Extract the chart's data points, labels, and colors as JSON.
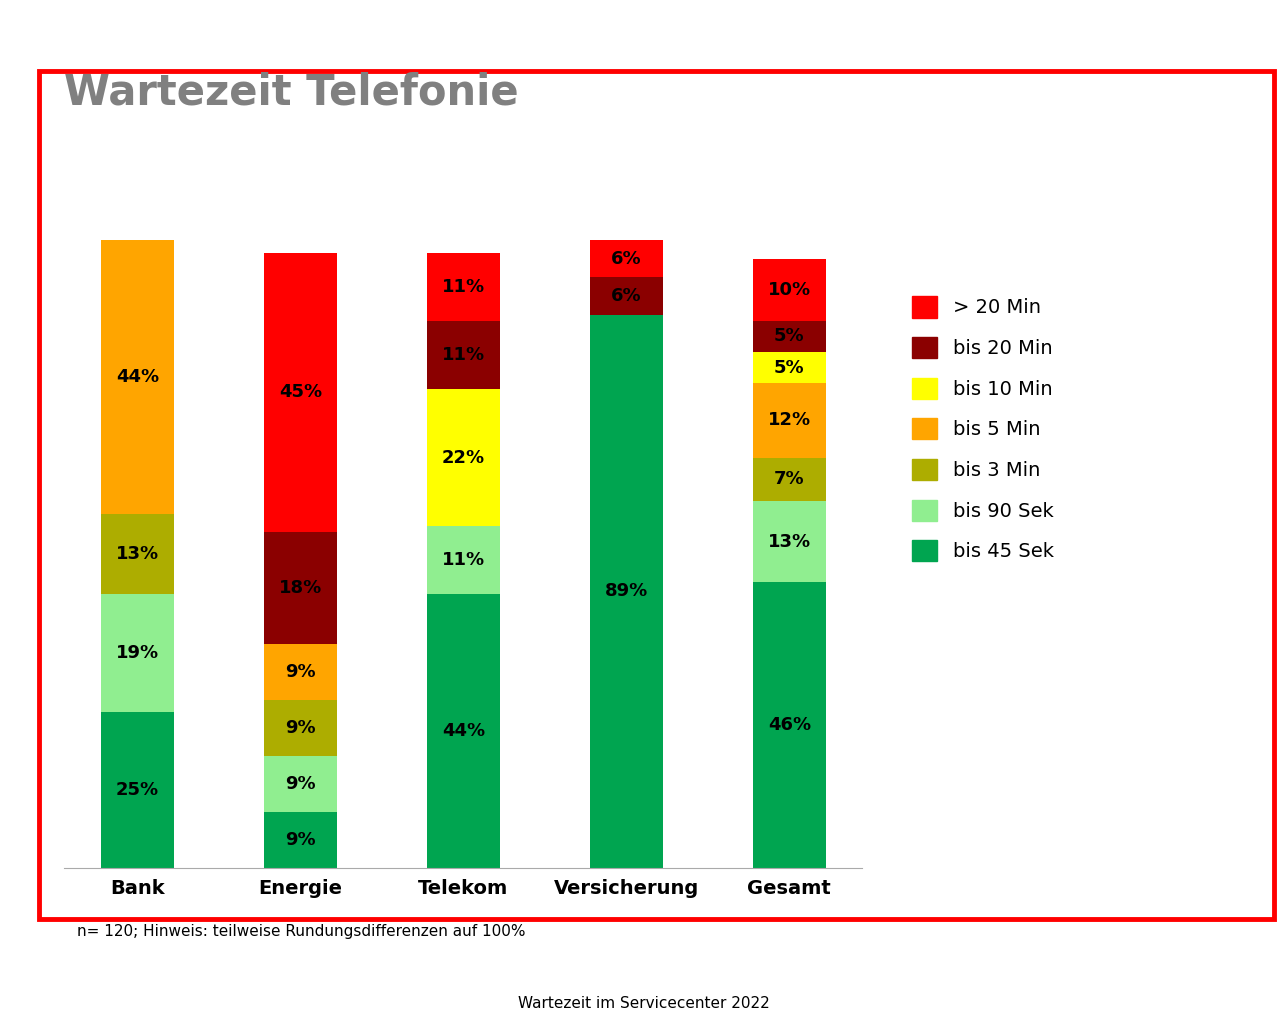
{
  "title": "Wartezeit Telefonie",
  "subtitle": "Wartezeit im Servicecenter 2022",
  "footnote": "n= 120; Hinweis: teilweise Rundungsdifferenzen auf 100%",
  "categories": [
    "Bank",
    "Energie",
    "Telekom",
    "Versicherung",
    "Gesamt"
  ],
  "legend_labels": [
    "> 20 Min",
    "bis 20 Min",
    "bis 10 Min",
    "bis 5 Min",
    "bis 3 Min",
    "bis 90 Sek",
    "bis 45 Sek"
  ],
  "colors": {
    "> 20 Min": "#FF0000",
    "bis 20 Min": "#8B0000",
    "bis 10 Min": "#FFFF00",
    "bis 5 Min": "#FFA500",
    "bis 3 Min": "#ADAD00",
    "bis 90 Sek": "#90EE90",
    "bis 45 Sek": "#00A550"
  },
  "data": {
    "Bank": {
      "bis 45 Sek": 25,
      "bis 90 Sek": 19,
      "bis 3 Min": 13,
      "bis 5 Min": 44,
      "bis 10 Min": 0,
      "bis 20 Min": 0,
      "> 20 Min": 0
    },
    "Energie": {
      "bis 45 Sek": 9,
      "bis 90 Sek": 9,
      "bis 3 Min": 9,
      "bis 5 Min": 9,
      "bis 10 Min": 0,
      "bis 20 Min": 18,
      "> 20 Min": 45
    },
    "Telekom": {
      "bis 45 Sek": 44,
      "bis 90 Sek": 11,
      "bis 3 Min": 0,
      "bis 5 Min": 0,
      "bis 10 Min": 22,
      "bis 20 Min": 11,
      "> 20 Min": 11
    },
    "Versicherung": {
      "bis 45 Sek": 89,
      "bis 90 Sek": 0,
      "bis 3 Min": 0,
      "bis 5 Min": 0,
      "bis 10 Min": 0,
      "bis 20 Min": 6,
      "> 20 Min": 6
    },
    "Gesamt": {
      "bis 45 Sek": 46,
      "bis 90 Sek": 13,
      "bis 3 Min": 7,
      "bis 5 Min": 12,
      "bis 10 Min": 5,
      "bis 20 Min": 5,
      "> 20 Min": 10
    }
  },
  "border_color": "#FF0000",
  "title_color": "#808080",
  "title_fontsize": 30,
  "label_fontsize": 13,
  "axis_fontsize": 14,
  "legend_fontsize": 14,
  "fig_width": 12.87,
  "fig_height": 10.21,
  "fig_dpi": 100
}
